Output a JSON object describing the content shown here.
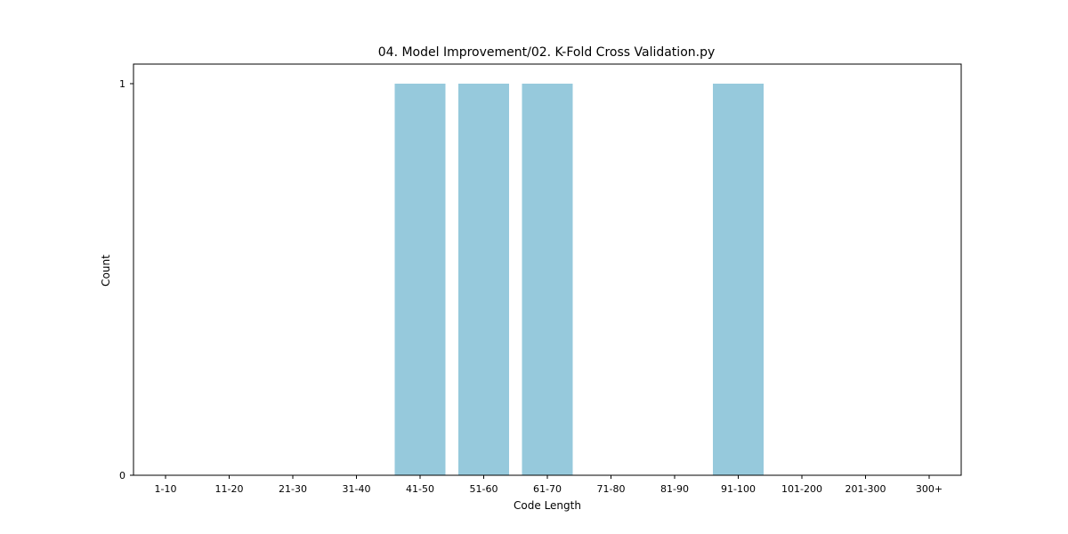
{
  "chart_data": {
    "type": "bar",
    "title": "04. Model Improvement/02. K-Fold Cross Validation.py",
    "xlabel": "Code Length",
    "ylabel": "Count",
    "categories": [
      "1-10",
      "11-20",
      "21-30",
      "31-40",
      "41-50",
      "51-60",
      "61-70",
      "71-80",
      "81-90",
      "91-100",
      "101-200",
      "201-300",
      "300+"
    ],
    "values": [
      0,
      0,
      0,
      0,
      1,
      1,
      1,
      0,
      0,
      1,
      0,
      0,
      0
    ],
    "ylim": [
      0,
      1
    ],
    "yticks": [
      "0",
      "1"
    ],
    "grid": false,
    "colors": {
      "bar": "#96c9dc",
      "frame": "#000000"
    }
  }
}
